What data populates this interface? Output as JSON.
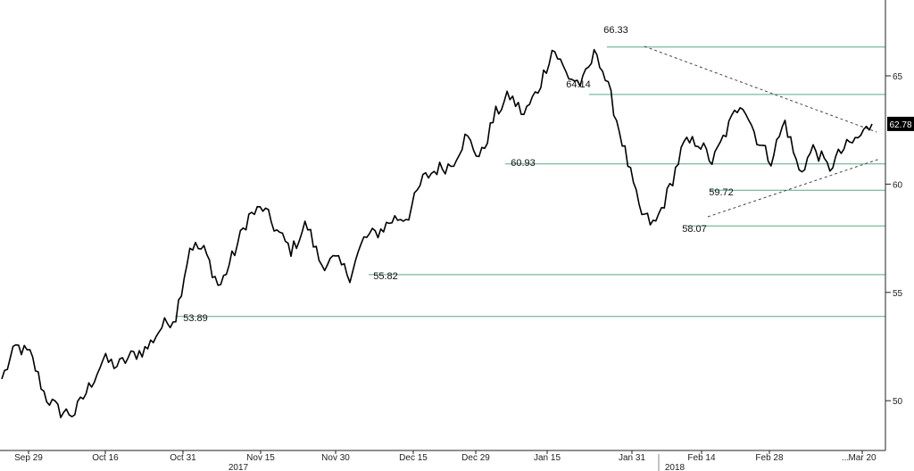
{
  "chart_data": {
    "type": "line",
    "title": "",
    "xlabel": "",
    "ylabel": "",
    "ylim": [
      47.7,
      68.5
    ],
    "y_ticks": [
      "50",
      "55",
      "60",
      "65"
    ],
    "x_ticks": [
      "Sep 29",
      "Oct 16",
      "Oct 31",
      "Nov 15",
      "Nov 30",
      "Dec 15",
      "Dec 29",
      "Jan 15",
      "Jan 31",
      "Feb 14",
      "Feb 28",
      "Mar 20"
    ],
    "x_ellipsis": "...",
    "year_labels": [
      "2017",
      "2018"
    ],
    "grid": false,
    "colors": {
      "price": "#000000",
      "levels": "#5aaa84",
      "trend": "#444444",
      "badge": "#000000"
    },
    "series": [
      {
        "values": [
          51.0,
          52.5,
          52.1,
          50.2,
          49.5,
          49.4,
          50.6,
          51.9,
          51.6,
          52.1,
          52.4,
          53.4,
          53.9,
          57.2,
          56.9,
          55.2,
          56.8,
          58.5,
          58.9,
          57.8,
          56.9,
          58.2,
          56.3,
          56.5,
          55.8,
          57.5,
          57.8,
          58.4,
          58.5,
          60.2,
          60.7,
          60.9,
          62.2,
          61.2,
          63.2,
          64.1,
          63.2,
          64.4,
          66.3,
          65.0,
          64.6,
          66.2,
          64.0,
          61.4,
          58.7,
          58.07,
          59.72,
          61.8,
          62.0,
          61.0,
          62.5,
          63.9,
          62.2,
          61.1,
          62.9,
          60.5,
          61.7,
          60.7,
          61.6,
          62.1,
          62.78
        ]
      }
    ],
    "levels": [
      "53.89",
      "55.82",
      "58.07",
      "59.72",
      "60.93",
      "64.14",
      "66.33"
    ],
    "last_value": "62.78"
  }
}
